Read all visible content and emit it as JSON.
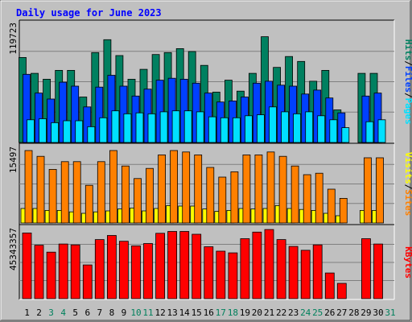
{
  "chart_data": [
    {
      "type": "bar",
      "title": "Daily usage for June 2023",
      "y_max_label": "119723",
      "categories": [
        "1",
        "2",
        "3",
        "4",
        "5",
        "6",
        "7",
        "8",
        "9",
        "10",
        "11",
        "12",
        "13",
        "14",
        "15",
        "16",
        "17",
        "18",
        "19",
        "20",
        "21",
        "22",
        "23",
        "24",
        "25",
        "26",
        "27",
        "28",
        "29",
        "30",
        "31"
      ],
      "ylim": [
        0,
        119723
      ],
      "grid": true,
      "right_labels": [
        "Hits",
        "/",
        "Files",
        "/",
        "Pages"
      ],
      "series": [
        {
          "name": "Hits",
          "color": "#008060",
          "values": [
            86000,
            70000,
            64000,
            73000,
            73000,
            46000,
            91000,
            104000,
            88000,
            64000,
            74000,
            89000,
            91000,
            95000,
            92000,
            78000,
            51000,
            63000,
            52000,
            70000,
            107000,
            76000,
            87000,
            82000,
            62000,
            73000,
            33000,
            null,
            70000,
            70000,
            null
          ]
        },
        {
          "name": "Files",
          "color": "#0040ff",
          "values": [
            69000,
            50000,
            44000,
            61000,
            57000,
            36000,
            56000,
            68000,
            57000,
            47000,
            54000,
            63000,
            65000,
            64000,
            60000,
            50000,
            41000,
            42000,
            46000,
            60000,
            62000,
            58000,
            57000,
            49000,
            53000,
            45000,
            30000,
            null,
            47000,
            50000,
            null
          ]
        },
        {
          "name": "Pages",
          "color": "#00e0ff",
          "values": [
            23000,
            24000,
            20000,
            22000,
            22000,
            16000,
            25000,
            32000,
            29000,
            30000,
            29000,
            31000,
            32000,
            32000,
            31000,
            26000,
            25000,
            25000,
            27000,
            28000,
            36000,
            31000,
            29000,
            31000,
            27000,
            23000,
            15000,
            null,
            21000,
            23000,
            null
          ]
        }
      ]
    },
    {
      "type": "bar",
      "y_max_label": "15497",
      "categories": [
        "1",
        "2",
        "3",
        "4",
        "5",
        "6",
        "7",
        "8",
        "9",
        "10",
        "11",
        "12",
        "13",
        "14",
        "15",
        "16",
        "17",
        "18",
        "19",
        "20",
        "21",
        "22",
        "23",
        "24",
        "25",
        "26",
        "27",
        "28",
        "29",
        "30",
        "31"
      ],
      "ylim": [
        0,
        15497
      ],
      "grid": true,
      "right_labels": [
        "Visits",
        "/",
        "Sites"
      ],
      "series": [
        {
          "name": "Visits",
          "color": "#ffff00",
          "values": [
            3000,
            3000,
            2600,
            2600,
            2300,
            2000,
            2300,
            2500,
            2900,
            3100,
            2500,
            3000,
            3600,
            3500,
            3500,
            2900,
            2400,
            2600,
            3000,
            2900,
            3000,
            3600,
            3000,
            2800,
            2600,
            2000,
            1500,
            null,
            2600,
            2600,
            null
          ]
        },
        {
          "name": "Sites",
          "color": "#ff8000",
          "values": [
            15000,
            13800,
            11100,
            12700,
            12700,
            7800,
            12700,
            15000,
            11800,
            9200,
            11300,
            14100,
            15000,
            14700,
            14100,
            11500,
            9500,
            10600,
            14100,
            14100,
            14700,
            13800,
            11800,
            10000,
            10300,
            7000,
            5100,
            null,
            13500,
            13500,
            null
          ]
        }
      ]
    },
    {
      "type": "bar",
      "y_max_label": "45343357",
      "categories": [
        "1",
        "2",
        "3",
        "4",
        "5",
        "6",
        "7",
        "8",
        "9",
        "10",
        "11",
        "12",
        "13",
        "14",
        "15",
        "16",
        "17",
        "18",
        "19",
        "20",
        "21",
        "22",
        "23",
        "24",
        "25",
        "26",
        "27",
        "28",
        "29",
        "30",
        "31"
      ],
      "ylim": [
        0,
        45343357
      ],
      "grid": true,
      "right_labels": [
        "KBytes"
      ],
      "series": [
        {
          "name": "KBytes",
          "color": "#ff0000",
          "values": [
            43000000,
            35000000,
            30500000,
            35800000,
            35200000,
            22100000,
            38700000,
            41400000,
            37600000,
            34600000,
            36100000,
            42800000,
            44000000,
            44000000,
            42200000,
            34000000,
            31100000,
            30000000,
            39300000,
            43600000,
            45300000,
            38700000,
            34200000,
            31700000,
            35200000,
            16800000,
            10000000,
            null,
            39300000,
            35800000,
            null
          ]
        }
      ]
    }
  ],
  "x_axis": {
    "labels": [
      "1",
      "2",
      "3",
      "4",
      "5",
      "6",
      "7",
      "8",
      "9",
      "10",
      "11",
      "12",
      "13",
      "14",
      "15",
      "16",
      "17",
      "18",
      "19",
      "20",
      "21",
      "22",
      "23",
      "24",
      "25",
      "26",
      "27",
      "28",
      "29",
      "30",
      "31"
    ],
    "weekend_days": [
      "3",
      "4",
      "10",
      "11",
      "17",
      "18",
      "24",
      "25",
      "31"
    ],
    "weekday_color": "#000000",
    "weekend_color": "#00805c"
  },
  "colors": {
    "background": "#c0c0c0",
    "title": "#0000ff",
    "grid": "#808080",
    "separator": "#000000",
    "slash": "#000000"
  }
}
